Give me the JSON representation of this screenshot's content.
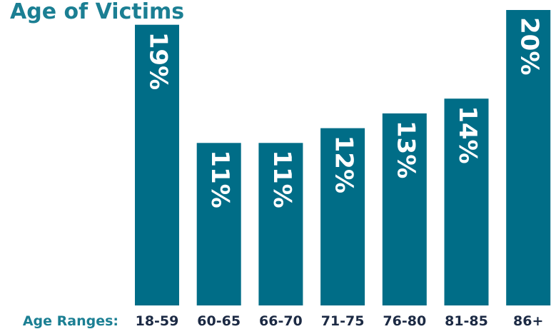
{
  "chart_data": {
    "type": "bar",
    "title": "Age of Victims",
    "x_label": "Age Ranges:",
    "categories": [
      "18-59",
      "60-65",
      "66-70",
      "71-75",
      "76-80",
      "81-85",
      "86+"
    ],
    "values": [
      19,
      11,
      11,
      12,
      13,
      14,
      20
    ],
    "value_labels": [
      "19%",
      "11%",
      "11%",
      "12%",
      "13%",
      "14%",
      "20%"
    ],
    "color": "#006d87"
  }
}
